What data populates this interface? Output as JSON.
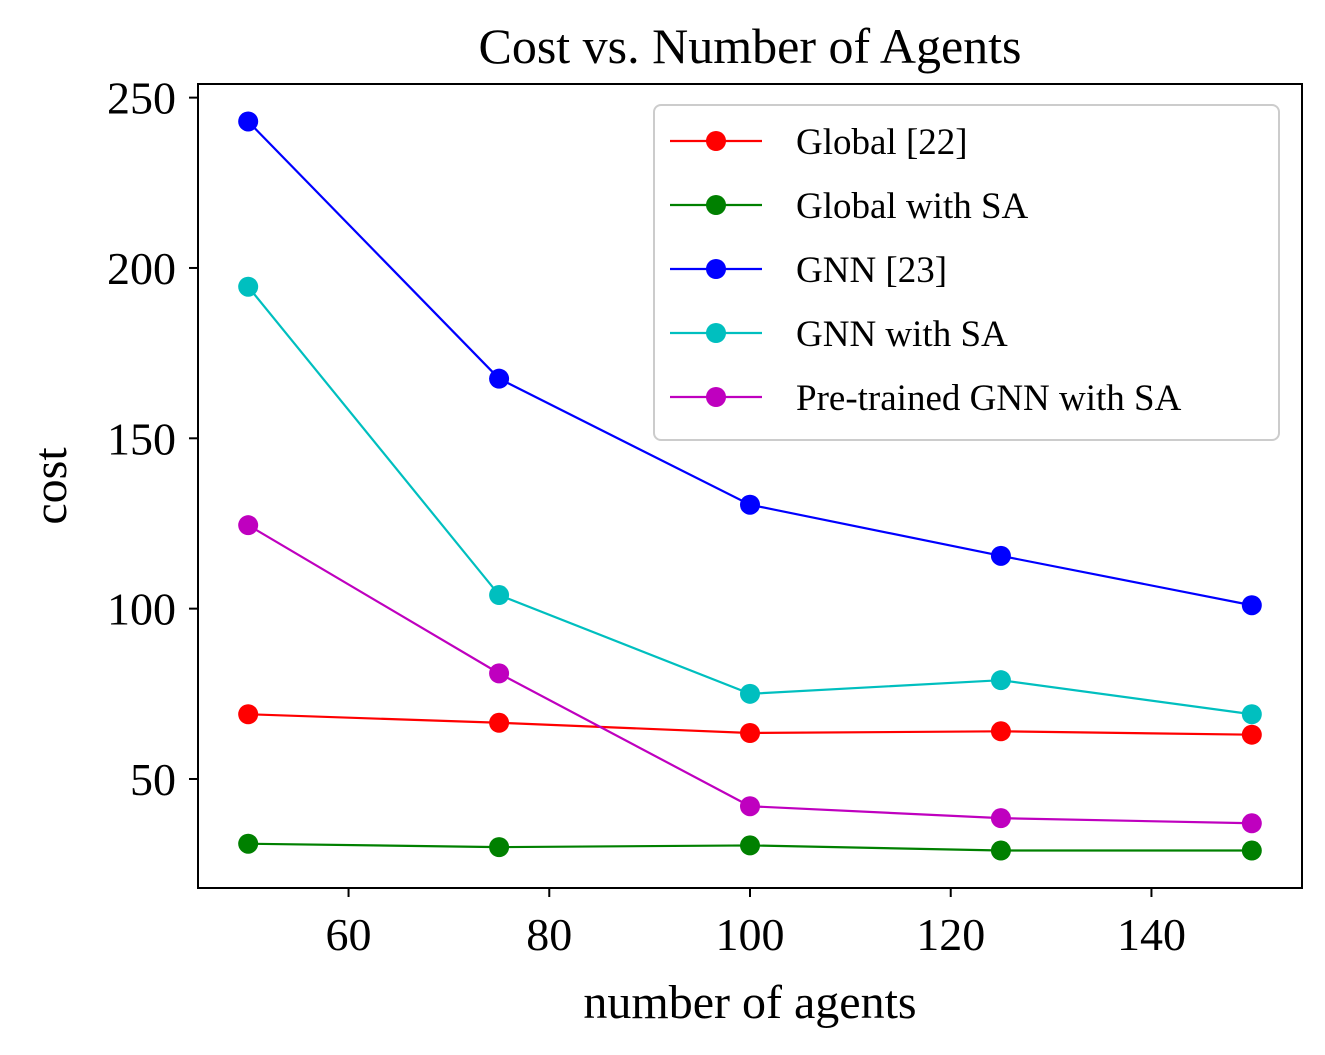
{
  "chart_data": {
    "type": "line",
    "title": "Cost vs. Number of Agents",
    "xlabel": "number of agents",
    "ylabel": "cost",
    "x": [
      50,
      75,
      100,
      125,
      150
    ],
    "xlim": [
      45,
      155
    ],
    "ylim": [
      18,
      254
    ],
    "xticks": [
      60,
      80,
      100,
      120,
      140
    ],
    "yticks": [
      50,
      100,
      150,
      200,
      250
    ],
    "grid": false,
    "legend_position": "top-right",
    "series": [
      {
        "name": "Global [22]",
        "color": "#ff0000",
        "values": [
          69,
          66.5,
          63.5,
          64,
          63
        ]
      },
      {
        "name": "Global with SA",
        "color": "#008000",
        "values": [
          31,
          30,
          30.5,
          29,
          29
        ]
      },
      {
        "name": "GNN [23]",
        "color": "#0000ff",
        "values": [
          243,
          167.5,
          130.5,
          115.5,
          101
        ]
      },
      {
        "name": "GNN with SA",
        "color": "#00bfbf",
        "values": [
          194.5,
          104,
          75,
          79,
          69
        ]
      },
      {
        "name": "Pre-trained GNN with SA",
        "color": "#bf00bf",
        "values": [
          124.5,
          81,
          42,
          38.5,
          37
        ]
      }
    ]
  }
}
